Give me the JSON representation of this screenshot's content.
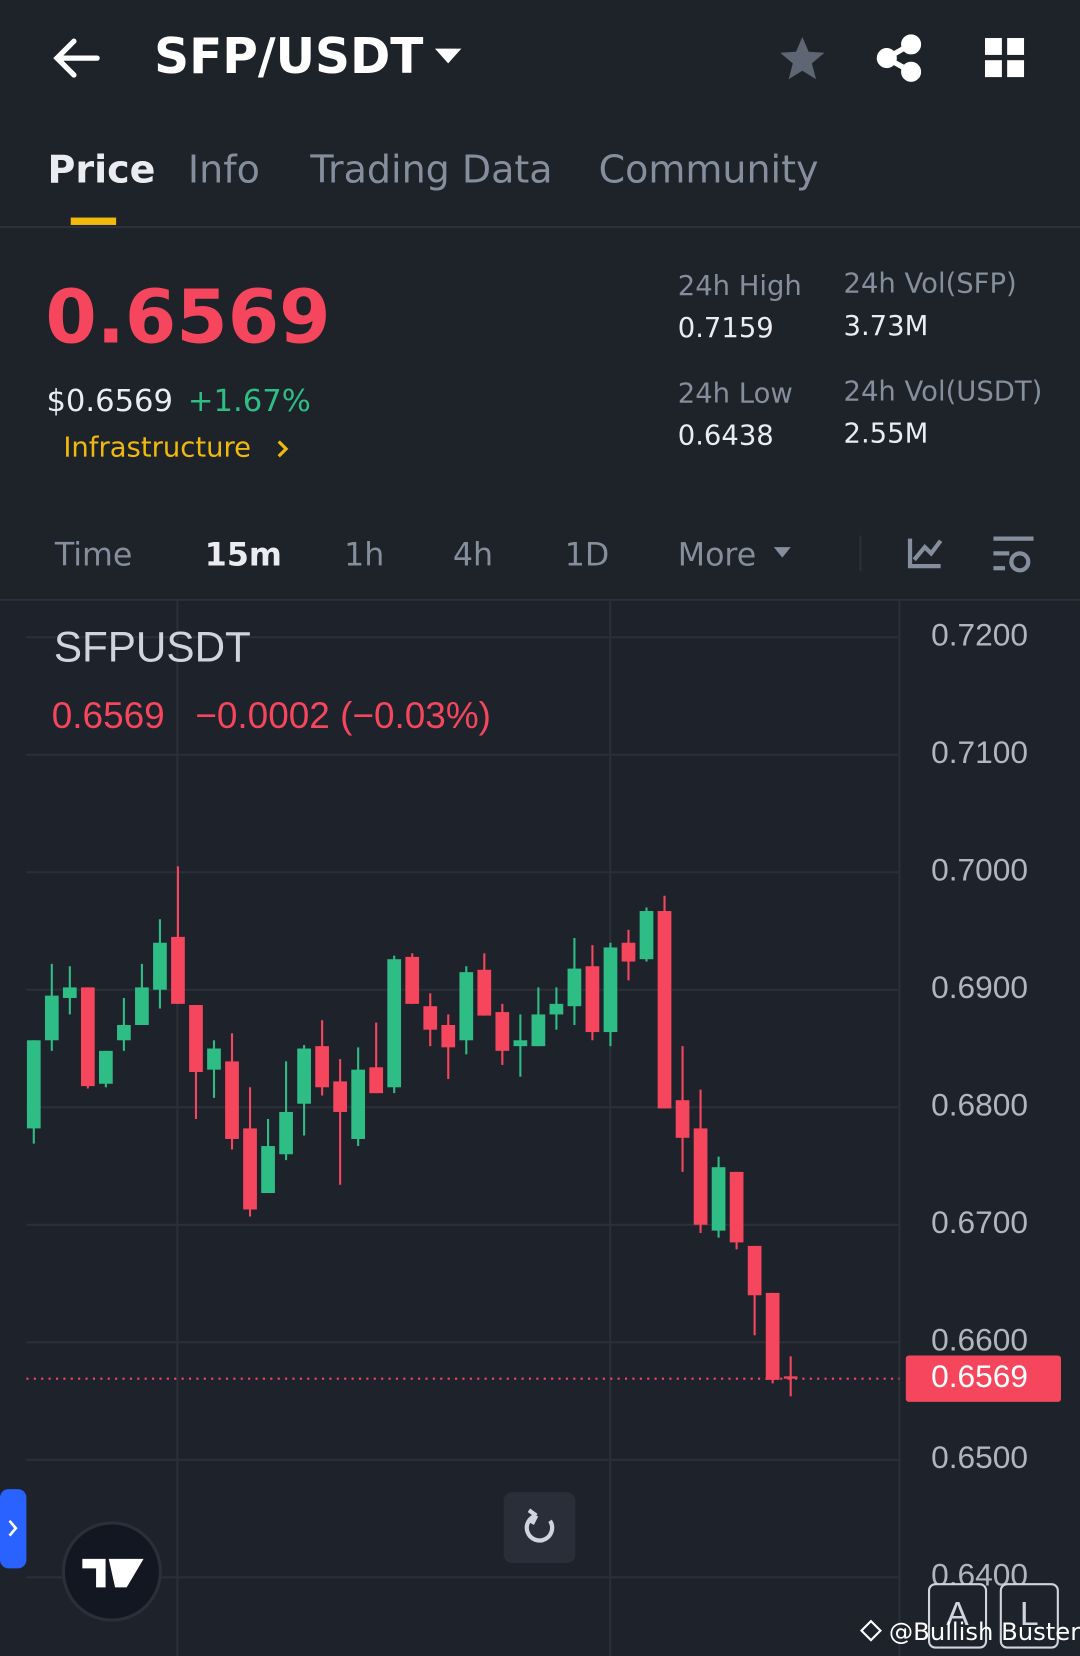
{
  "header": {
    "pair": "SFP/USDT"
  },
  "tabs": [
    "Price",
    "Info",
    "Trading Data",
    "Community"
  ],
  "summary": {
    "price": "0.6569",
    "usd_price": "$0.6569",
    "change": "+1.67%",
    "sector": "Infrastructure",
    "stats": [
      {
        "label": "24h High",
        "value": "0.7159"
      },
      {
        "label": "24h Vol(SFP)",
        "value": "3.73M"
      },
      {
        "label": "24h Low",
        "value": "0.6438"
      },
      {
        "label": "24h Vol(USDT)",
        "value": "2.55M"
      }
    ]
  },
  "intervals": [
    "Time",
    "15m",
    "1h",
    "4h",
    "1D",
    "More"
  ],
  "chart_data": {
    "type": "candlestick",
    "title": "SFPUSDT",
    "last_label": "0.6569",
    "change_label": "−0.0002 (−0.03%)",
    "up_color": "#2ebd85",
    "down_color": "#f6465d",
    "open": [
      0.6782,
      0.6857,
      0.6893,
      0.6902,
      0.682,
      0.6857,
      0.687,
      0.69,
      0.6945,
      0.6887,
      0.6832,
      0.6839,
      0.6782,
      0.6727,
      0.676,
      0.6803,
      0.6852,
      0.6822,
      0.6773,
      0.6834,
      0.6817,
      0.6928,
      0.6886,
      0.687,
      0.6857,
      0.6917,
      0.6881,
      0.6852,
      0.6852,
      0.6879,
      0.6886,
      0.692,
      0.6864,
      0.694,
      0.6926,
      0.6967,
      0.6806,
      0.6782,
      0.6695,
      0.6745,
      0.6682,
      0.6642,
      0.6571
    ],
    "high": [
      0.6857,
      0.6922,
      0.692,
      0.6902,
      0.6848,
      0.6893,
      0.6922,
      0.696,
      0.7005,
      0.6887,
      0.6857,
      0.6863,
      0.6817,
      0.679,
      0.6839,
      0.6853,
      0.6874,
      0.6841,
      0.6851,
      0.6872,
      0.6929,
      0.6931,
      0.6897,
      0.6879,
      0.692,
      0.6931,
      0.6888,
      0.6879,
      0.6902,
      0.6902,
      0.6944,
      0.6938,
      0.694,
      0.6951,
      0.697,
      0.698,
      0.6852,
      0.6815,
      0.6758,
      0.6745,
      0.6682,
      0.6642,
      0.6588
    ],
    "low": [
      0.6769,
      0.6848,
      0.6879,
      0.6816,
      0.6817,
      0.6848,
      0.687,
      0.6884,
      0.6888,
      0.679,
      0.6808,
      0.6764,
      0.6707,
      0.6727,
      0.6755,
      0.6776,
      0.681,
      0.6734,
      0.6767,
      0.6812,
      0.6812,
      0.6888,
      0.6852,
      0.6824,
      0.6845,
      0.6878,
      0.6836,
      0.6826,
      0.6852,
      0.6866,
      0.687,
      0.6857,
      0.6852,
      0.6908,
      0.6924,
      0.6799,
      0.6745,
      0.6693,
      0.6689,
      0.6679,
      0.6606,
      0.6565,
      0.6554
    ],
    "close": [
      0.6857,
      0.6895,
      0.6902,
      0.6818,
      0.6848,
      0.687,
      0.6902,
      0.694,
      0.6888,
      0.683,
      0.685,
      0.6773,
      0.6713,
      0.6767,
      0.6796,
      0.685,
      0.6817,
      0.6796,
      0.6832,
      0.6812,
      0.6926,
      0.6888,
      0.6866,
      0.6851,
      0.6915,
      0.6878,
      0.6848,
      0.6857,
      0.6879,
      0.6888,
      0.6918,
      0.6864,
      0.6936,
      0.6924,
      0.6967,
      0.6799,
      0.6774,
      0.67,
      0.6749,
      0.6685,
      0.664,
      0.6568,
      0.6569
    ],
    "ylim": [
      0.6333,
      0.723
    ],
    "yticks": [
      {
        "value": 0.72,
        "label": "0.7200"
      },
      {
        "value": 0.71,
        "label": "0.7100"
      },
      {
        "value": 0.7,
        "label": "0.7000"
      },
      {
        "value": 0.69,
        "label": "0.6900"
      },
      {
        "value": 0.68,
        "label": "0.6800"
      },
      {
        "value": 0.67,
        "label": "0.6700"
      },
      {
        "value": 0.66,
        "label": "0.6600"
      },
      {
        "value": 0.65,
        "label": "0.6500"
      },
      {
        "value": 0.64,
        "label": "0.6400"
      }
    ],
    "grid": true,
    "last_price": {
      "value": 0.6569,
      "label": "0.6569"
    }
  },
  "controls": {
    "auto": "A",
    "log": "L"
  },
  "watermark": "@Bullish Buster"
}
